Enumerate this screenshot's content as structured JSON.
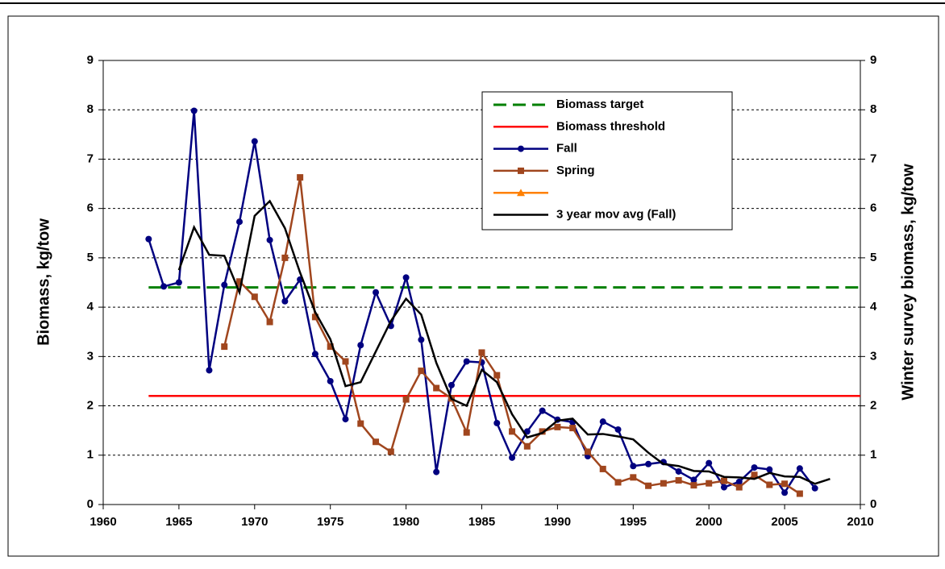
{
  "chart_data": {
    "type": "line",
    "y_label": "Biomass, kg/tow",
    "y2_label": "Winter survey biomass, kg/tow",
    "xlim": [
      1960,
      2010
    ],
    "xticks": [
      1960,
      1965,
      1970,
      1975,
      1980,
      1985,
      1990,
      1995,
      2000,
      2005,
      2010
    ],
    "ylim": [
      0,
      9
    ],
    "yticks": [
      0,
      1,
      2,
      3,
      4,
      5,
      6,
      7,
      8,
      9
    ],
    "y2lim": [
      0,
      9
    ],
    "y2ticks": [
      0,
      1,
      2,
      3,
      4,
      5,
      6,
      7,
      8,
      9
    ],
    "grid": true,
    "legend": "top-right",
    "series": [
      {
        "name": "Biomass target",
        "color": "#008000",
        "dash": true,
        "marker": "none",
        "x": [
          1963,
          2010
        ],
        "values": [
          4.4,
          4.4
        ]
      },
      {
        "name": "Biomass threshold",
        "color": "#ff0000",
        "dash": false,
        "marker": "none",
        "x": [
          1963,
          2010
        ],
        "values": [
          2.2,
          2.2
        ]
      },
      {
        "name": "Fall",
        "color": "#000080",
        "dash": false,
        "marker": "circle",
        "x": [
          1963,
          1964,
          1965,
          1966,
          1967,
          1968,
          1969,
          1970,
          1971,
          1972,
          1973,
          1974,
          1975,
          1976,
          1977,
          1978,
          1979,
          1980,
          1981,
          1982,
          1983,
          1984,
          1985,
          1986,
          1987,
          1988,
          1989,
          1990,
          1991,
          1992,
          1993,
          1994,
          1995,
          1996,
          1997,
          1998,
          1999,
          2000,
          2001,
          2002,
          2003,
          2004,
          2005,
          2006,
          2007
        ],
        "values": [
          5.38,
          4.42,
          4.5,
          7.98,
          2.72,
          4.45,
          5.73,
          7.36,
          5.36,
          4.12,
          4.56,
          3.05,
          2.5,
          1.73,
          3.23,
          4.3,
          3.62,
          4.6,
          3.34,
          0.66,
          2.42,
          2.9,
          2.88,
          1.65,
          0.95,
          1.48,
          1.9,
          1.72,
          1.67,
          0.98,
          1.68,
          1.52,
          0.78,
          0.82,
          0.86,
          0.67,
          0.5,
          0.84,
          0.35,
          0.46,
          0.75,
          0.71,
          0.24,
          0.73,
          0.33
        ]
      },
      {
        "name": "Spring",
        "color": "#a0461e",
        "dash": false,
        "marker": "square",
        "x": [
          1968,
          1969,
          1970,
          1971,
          1972,
          1973,
          1974,
          1975,
          1976,
          1977,
          1978,
          1979,
          1980,
          1981,
          1982,
          1983,
          1984,
          1985,
          1986,
          1987,
          1988,
          1989,
          1990,
          1991,
          1992,
          1993,
          1994,
          1995,
          1996,
          1997,
          1998,
          1999,
          2000,
          2001,
          2002,
          2003,
          2004,
          2005,
          2006
        ],
        "values": [
          3.2,
          4.52,
          4.21,
          3.7,
          5.0,
          6.63,
          3.8,
          3.2,
          2.9,
          1.64,
          1.27,
          1.07,
          2.13,
          2.71,
          2.36,
          2.15,
          1.46,
          3.08,
          2.62,
          1.48,
          1.18,
          1.48,
          1.57,
          1.55,
          1.07,
          0.72,
          0.45,
          0.55,
          0.38,
          0.43,
          0.49,
          0.39,
          0.43,
          0.48,
          0.35,
          0.6,
          0.4,
          0.42,
          0.22
        ]
      },
      {
        "color": "#ff8000",
        "dash": false,
        "marker": "triangle",
        "axis": "y2",
        "x": [],
        "values": []
      },
      {
        "name": "3 year mov avg (Fall)",
        "color": "#000000",
        "dash": false,
        "marker": "none",
        "x": [
          1965,
          1966,
          1967,
          1968,
          1969,
          1970,
          1971,
          1972,
          1973,
          1974,
          1975,
          1976,
          1977,
          1978,
          1979,
          1980,
          1981,
          1982,
          1983,
          1984,
          1985,
          1986,
          1987,
          1988,
          1989,
          1990,
          1991,
          1992,
          1993,
          1994,
          1995,
          1996,
          1997,
          1998,
          1999,
          2000,
          2001,
          2002,
          2003,
          2004,
          2005,
          2006,
          2007,
          2008
        ],
        "values": [
          4.75,
          5.62,
          5.06,
          5.04,
          4.3,
          5.85,
          6.15,
          5.6,
          4.7,
          3.9,
          3.35,
          2.4,
          2.48,
          3.1,
          3.72,
          4.17,
          3.85,
          2.87,
          2.14,
          2.0,
          2.73,
          2.48,
          1.83,
          1.36,
          1.45,
          1.7,
          1.74,
          1.42,
          1.43,
          1.38,
          1.32,
          1.05,
          0.82,
          0.78,
          0.68,
          0.67,
          0.56,
          0.55,
          0.52,
          0.64,
          0.57,
          0.56,
          0.42,
          0.52
        ]
      }
    ]
  }
}
